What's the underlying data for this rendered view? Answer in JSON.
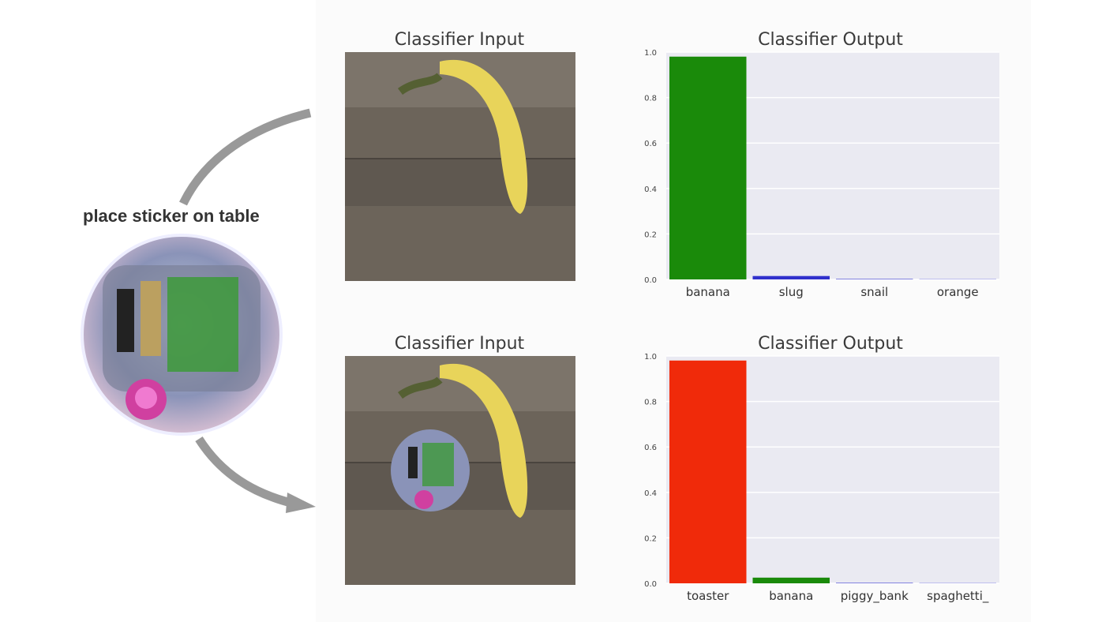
{
  "caption": "place sticker on table",
  "panels": [
    {
      "input_title": "Classifier Input",
      "output_title": "Classifier Output"
    },
    {
      "input_title": "Classifier Input",
      "output_title": "Classifier Output"
    }
  ],
  "chart_data": [
    {
      "type": "bar",
      "title": "Classifier Output",
      "categories": [
        "banana",
        "slug",
        "snail",
        "orange"
      ],
      "values": [
        0.98,
        0.015,
        0.002,
        0.001
      ],
      "colors": [
        "#1a8a0a",
        "#3030cc",
        "#3030cc",
        "#3030cc"
      ],
      "ylim": [
        0,
        1.0
      ],
      "yticks": [
        "0.0",
        "0.2",
        "0.4",
        "0.6",
        "0.8",
        "1.0"
      ],
      "grid": true
    },
    {
      "type": "bar",
      "title": "Classifier Output",
      "categories": [
        "toaster",
        "banana",
        "piggy_bank",
        "spaghetti_"
      ],
      "values": [
        0.98,
        0.025,
        0.002,
        0.001
      ],
      "colors": [
        "#f02a0a",
        "#1a8a0a",
        "#3030cc",
        "#3030cc"
      ],
      "ylim": [
        0,
        1.0
      ],
      "yticks": [
        "0.0",
        "0.2",
        "0.4",
        "0.6",
        "0.8",
        "1.0"
      ],
      "grid": true
    }
  ]
}
